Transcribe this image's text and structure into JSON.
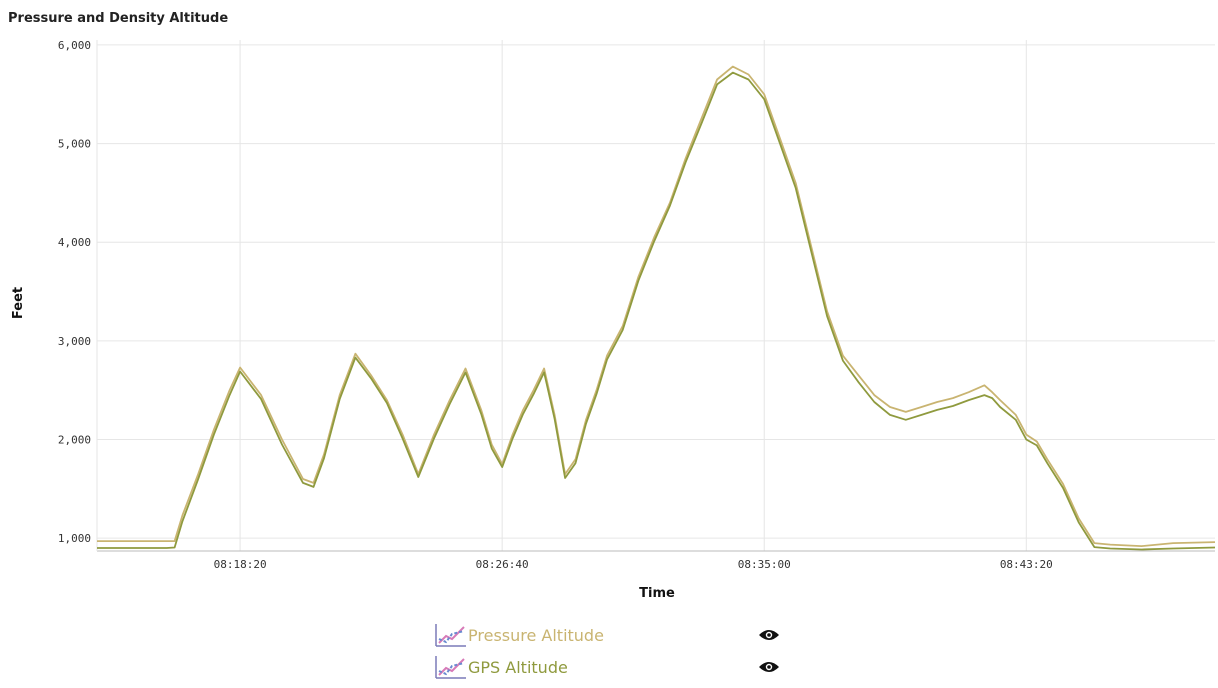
{
  "chart_data": {
    "type": "line",
    "title": "Pressure and Density Altitude",
    "xlabel": "Time",
    "ylabel": "Feet",
    "x_ticks": [
      "08:18:20",
      "08:26:40",
      "08:35:00",
      "08:43:20"
    ],
    "y_ticks": [
      "1,000",
      "2,000",
      "3,000",
      "4,000",
      "5,000",
      "6,000"
    ],
    "xlim": [
      "08:13:47",
      "08:49:20"
    ],
    "ylim": [
      870,
      6050
    ],
    "grid": true,
    "legend_position": "bottom-center",
    "x": [
      "08:13:47",
      "08:16:00",
      "08:16:15",
      "08:16:30",
      "08:17:00",
      "08:17:30",
      "08:18:00",
      "08:18:20",
      "08:19:00",
      "08:19:40",
      "08:20:20",
      "08:20:40",
      "08:21:00",
      "08:21:30",
      "08:22:00",
      "08:22:30",
      "08:23:00",
      "08:23:30",
      "08:24:00",
      "08:24:30",
      "08:25:00",
      "08:25:30",
      "08:26:00",
      "08:26:20",
      "08:26:40",
      "08:27:00",
      "08:27:20",
      "08:27:40",
      "08:28:00",
      "08:28:20",
      "08:28:40",
      "08:29:00",
      "08:29:20",
      "08:29:40",
      "08:30:00",
      "08:30:30",
      "08:31:00",
      "08:31:30",
      "08:32:00",
      "08:32:30",
      "08:33:00",
      "08:33:30",
      "08:34:00",
      "08:34:30",
      "08:35:00",
      "08:35:30",
      "08:36:00",
      "08:36:30",
      "08:37:00",
      "08:37:30",
      "08:38:00",
      "08:38:30",
      "08:39:00",
      "08:39:30",
      "08:40:00",
      "08:40:30",
      "08:41:00",
      "08:41:30",
      "08:42:00",
      "08:42:15",
      "08:42:30",
      "08:43:00",
      "08:43:20",
      "08:43:40",
      "08:44:00",
      "08:44:30",
      "08:45:00",
      "08:45:30",
      "08:46:00",
      "08:47:00",
      "08:48:00",
      "08:49:20"
    ],
    "series": [
      {
        "name": "Pressure Altitude",
        "color": "#c9b471",
        "values": [
          970,
          970,
          970,
          1230,
          1650,
          2100,
          2500,
          2730,
          2450,
          2000,
          1600,
          1560,
          1850,
          2450,
          2870,
          2650,
          2400,
          2050,
          1650,
          2050,
          2400,
          2720,
          2300,
          1950,
          1750,
          2050,
          2300,
          2500,
          2720,
          2250,
          1650,
          1800,
          2200,
          2500,
          2850,
          3150,
          3650,
          4050,
          4400,
          4850,
          5250,
          5650,
          5780,
          5700,
          5500,
          5050,
          4600,
          3950,
          3300,
          2850,
          2650,
          2450,
          2330,
          2280,
          2330,
          2380,
          2420,
          2480,
          2550,
          2480,
          2400,
          2250,
          2050,
          1980,
          1800,
          1550,
          1200,
          950,
          935,
          920,
          950,
          960
        ]
      },
      {
        "name": "GPS Altitude",
        "color": "#8f9a3e",
        "values": [
          900,
          900,
          905,
          1170,
          1600,
          2050,
          2450,
          2690,
          2410,
          1950,
          1560,
          1520,
          1810,
          2410,
          2830,
          2620,
          2370,
          2010,
          1620,
          2010,
          2360,
          2680,
          2260,
          1910,
          1720,
          2010,
          2260,
          2460,
          2680,
          2210,
          1610,
          1760,
          2160,
          2460,
          2810,
          3110,
          3610,
          4010,
          4370,
          4810,
          5200,
          5600,
          5720,
          5650,
          5450,
          5000,
          4550,
          3900,
          3250,
          2800,
          2580,
          2380,
          2250,
          2200,
          2250,
          2300,
          2340,
          2400,
          2450,
          2420,
          2330,
          2200,
          2000,
          1940,
          1760,
          1510,
          1160,
          910,
          895,
          885,
          895,
          905
        ]
      }
    ]
  },
  "legend": {
    "items": [
      {
        "label": "Pressure Altitude",
        "color": "#c9b471",
        "icon": "line-chart-icon",
        "toggle_icon": "eye-icon"
      },
      {
        "label": "GPS Altitude",
        "color": "#8f9a3e",
        "icon": "line-chart-icon",
        "toggle_icon": "eye-icon"
      }
    ]
  }
}
